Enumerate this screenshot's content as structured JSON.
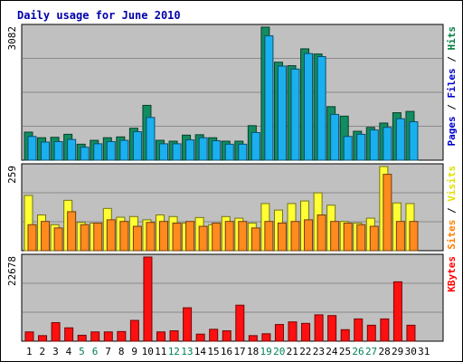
{
  "chart_data": {
    "type": "bar",
    "title": "Daily usage for June 2010",
    "x": [
      "1",
      "2",
      "3",
      "4",
      "5",
      "6",
      "7",
      "8",
      "9",
      "10",
      "11",
      "12",
      "13",
      "14",
      "15",
      "16",
      "17",
      "18",
      "19",
      "20",
      "21",
      "22",
      "23",
      "24",
      "25",
      "26",
      "27",
      "28",
      "29",
      "30",
      "31"
    ],
    "weekend_days": [
      "5",
      "6",
      "12",
      "13",
      "19",
      "20",
      "26",
      "27"
    ],
    "panels": [
      {
        "id": "hits",
        "max_label": "3082",
        "ylim": [
          0,
          3082
        ],
        "legend": [
          {
            "text": "Pages",
            "color": "#0000cc"
          },
          {
            "text": " / ",
            "color": "#000000"
          },
          {
            "text": "Files",
            "color": "#0000cc"
          },
          {
            "text": " / ",
            "color": "#000000"
          },
          {
            "text": "Hits",
            "color": "#008040"
          }
        ],
        "series": [
          {
            "name": "Hits",
            "color": "#128c60",
            "values": [
              650,
              520,
              530,
              600,
              370,
              460,
              520,
              540,
              740,
              1270,
              460,
              440,
              580,
              590,
              520,
              440,
              440,
              800,
              3082,
              2270,
              2190,
              2580,
              2460,
              1240,
              1020,
              670,
              760,
              860,
              1100,
              1130,
              null
            ]
          },
          {
            "name": "Files",
            "color": "#1ab0f0",
            "values": [
              550,
              420,
              430,
              480,
              300,
              380,
              430,
              460,
              660,
              990,
              380,
              380,
              470,
              520,
              450,
              370,
              370,
              640,
              2880,
              2180,
              2110,
              2470,
              2400,
              1060,
              550,
              600,
              700,
              760,
              960,
              890,
              null
            ]
          }
        ]
      },
      {
        "id": "visits",
        "max_label": "259",
        "ylim": [
          0,
          259
        ],
        "legend": [
          {
            "text": "Sites",
            "color": "#ff8000"
          },
          {
            "text": " / ",
            "color": "#000000"
          },
          {
            "text": "Visits",
            "color": "#e0e000"
          }
        ],
        "series": [
          {
            "name": "Visits",
            "color": "#ffff33",
            "values": [
              170,
              110,
              80,
              155,
              87,
              85,
              130,
              103,
              105,
              95,
              110,
              105,
              85,
              102,
              80,
              105,
              100,
              85,
              145,
              125,
              145,
              153,
              178,
              140,
              90,
              85,
              100,
              259,
              147,
              145,
              null
            ]
          },
          {
            "name": "Sites",
            "color": "#ff8a1e",
            "values": [
              80,
              90,
              70,
              120,
              80,
              85,
              95,
              90,
              75,
              87,
              90,
              85,
              90,
              75,
              85,
              90,
              90,
              70,
              90,
              85,
              90,
              95,
              110,
              90,
              85,
              80,
              75,
              235,
              90,
              90,
              null
            ]
          }
        ]
      },
      {
        "id": "kbytes",
        "max_label": "22678",
        "ylim": [
          0,
          22678
        ],
        "legend": [
          {
            "text": "KBytes",
            "color": "#ff0000"
          }
        ],
        "series": [
          {
            "name": "KBytes",
            "color": "#ff1010",
            "values": [
              2500,
              1500,
              5000,
              3600,
              1600,
              2500,
              2500,
              2600,
              5600,
              22678,
              2500,
              2800,
              9000,
              1900,
              3200,
              2800,
              9700,
              1500,
              2000,
              4500,
              5200,
              4800,
              7100,
              6900,
              3100,
              6000,
              4300,
              6000,
              16000,
              4300,
              null
            ]
          }
        ]
      }
    ]
  }
}
